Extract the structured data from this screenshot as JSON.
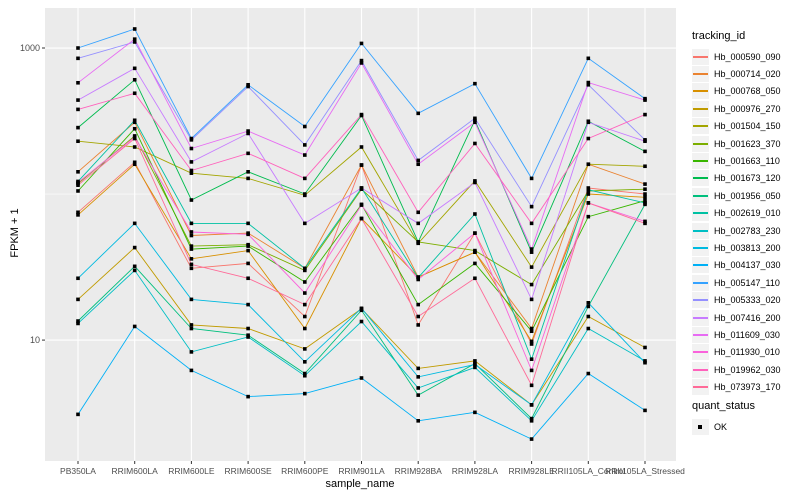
{
  "legend": {
    "tracking_title": "tracking_id",
    "quant_title": "quant_status",
    "quant_ok_label": "OK"
  },
  "panel": {
    "background": "#EBEBEB",
    "gridline_color": "#FFFFFF",
    "tick_label_color": "#4D4D4D",
    "point_color": "#000000"
  },
  "chart_data": {
    "type": "line",
    "title": "",
    "xlabel": "sample_name",
    "ylabel": "FPKM + 1",
    "y_scale": "log10",
    "y_ticks": [
      1000,
      10
    ],
    "y_minor_ticks": [
      100
    ],
    "ylim_log10": [
      0.172,
      3.274
    ],
    "grid": true,
    "legend_position": "right",
    "categories": [
      "PB350LA",
      "RRIM600LA",
      "RRIM600LE",
      "RRIM600SE",
      "RRIM600PE",
      "RRIM901LA",
      "RRIM928BA",
      "RRIM928LA",
      "RRIM928LE",
      "RRII105LA_Control",
      "RRII105LA_Stressed"
    ],
    "series": [
      {
        "name": "Hb_000590_090",
        "color": "#F8766D",
        "values": [
          75,
          165,
          31,
          33.5,
          14.5,
          158,
          12.7,
          54,
          9.4,
          110,
          100
        ]
      },
      {
        "name": "Hb_000714_020",
        "color": "#EA8331",
        "values": [
          142,
          310,
          52,
          54,
          31,
          158,
          27,
          40,
          12,
          160,
          117
        ]
      },
      {
        "name": "Hb_000768_050",
        "color": "#D89000",
        "values": [
          72,
          160,
          36,
          41,
          12,
          68,
          27,
          40,
          9.8,
          100,
          95
        ]
      },
      {
        "name": "Hb_000976_270",
        "color": "#C09B00",
        "values": [
          19,
          43,
          12.7,
          12,
          8.7,
          16.4,
          6.4,
          7.2,
          3.6,
          14.5,
          8.9
        ]
      },
      {
        "name": "Hb_001504_150",
        "color": "#A3A500",
        "values": [
          230,
          210,
          139,
          128,
          98,
          210,
          46,
          123,
          31.6,
          160,
          155
        ]
      },
      {
        "name": "Hb_001623_370",
        "color": "#7CAE00",
        "values": [
          118,
          250,
          44,
          45,
          30,
          108,
          47,
          41,
          24,
          105,
          108
        ]
      },
      {
        "name": "Hb_001663_110",
        "color": "#39B600",
        "values": [
          105,
          280,
          42,
          44,
          25,
          85,
          17.5,
          33.5,
          11.5,
          70,
          90
        ]
      },
      {
        "name": "Hb_001673_120",
        "color": "#00BB4E",
        "values": [
          285,
          606,
          91,
          142,
          100,
          345,
          47,
          320,
          40,
          315,
          196
        ]
      },
      {
        "name": "Hb_001956_050",
        "color": "#00BF7D",
        "values": [
          13.5,
          32,
          12,
          10.8,
          5.9,
          16,
          4.2,
          6.9,
          2.9,
          17,
          85
        ]
      },
      {
        "name": "Hb_002619_010",
        "color": "#00C1A3",
        "values": [
          122,
          320,
          63,
          63,
          31,
          110,
          26.8,
          73,
          7.4,
          107,
          87
        ]
      },
      {
        "name": "Hb_002783_230",
        "color": "#00BFC4",
        "values": [
          13,
          30,
          8.3,
          10.5,
          5.7,
          13.4,
          4.7,
          6.5,
          2.8,
          12,
          7.2
        ]
      },
      {
        "name": "Hb_003813_200",
        "color": "#00BAE0",
        "values": [
          26.5,
          63,
          19,
          17.5,
          7.1,
          16.5,
          5.6,
          6.8,
          3.6,
          18,
          7
        ]
      },
      {
        "name": "Hb_004137_030",
        "color": "#00B0F6",
        "values": [
          3.1,
          12.4,
          6.2,
          4.1,
          4.3,
          5.5,
          2.8,
          3.2,
          2.1,
          5.9,
          3.3
        ]
      },
      {
        "name": "Hb_005147_110",
        "color": "#35A2FF",
        "values": [
          1000,
          1350,
          240,
          560,
          290,
          1075,
          357,
          570,
          128,
          850,
          450
        ]
      },
      {
        "name": "Hb_005333_020",
        "color": "#9590FF",
        "values": [
          850,
          1100,
          235,
          545,
          217,
          820,
          170,
          330,
          82,
          560,
          235
        ]
      },
      {
        "name": "Hb_007416_200",
        "color": "#C77CFF",
        "values": [
          440,
          726,
          166,
          260,
          63,
          110,
          63,
          120,
          19,
          310,
          230
        ]
      },
      {
        "name": "Hb_011609_030",
        "color": "#E76BF3",
        "values": [
          578,
          1150,
          205,
          270,
          185,
          790,
          160,
          310,
          42,
          580,
          440
        ]
      },
      {
        "name": "Hb_011930_010",
        "color": "#FA62DB",
        "values": [
          120,
          245,
          55,
          53,
          21,
          84,
          26,
          54,
          6.2,
          87,
          65
        ]
      },
      {
        "name": "Hb_019962_030",
        "color": "#FF62BC",
        "values": [
          380,
          490,
          145,
          190,
          128,
          350,
          75,
          222,
          63,
          240,
          350
        ]
      },
      {
        "name": "Hb_073973_170",
        "color": "#FF6A98",
        "values": [
          115,
          240,
          33,
          26.5,
          17.5,
          68,
          14.5,
          26.5,
          4.9,
          87,
          63
        ]
      }
    ]
  }
}
